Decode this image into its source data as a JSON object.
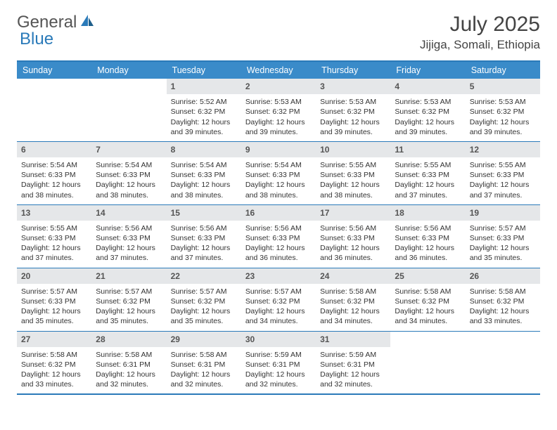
{
  "brand": {
    "part1": "General",
    "part2": "Blue",
    "logo_color": "#2a7ab9"
  },
  "title": "July 2025",
  "location": "Jijiga, Somali, Ethiopia",
  "colors": {
    "header_bg": "#3a8bc9",
    "header_text": "#ffffff",
    "rule": "#2a7ab9",
    "daynum_bg": "#e5e7e9",
    "text": "#333333"
  },
  "day_headers": [
    "Sunday",
    "Monday",
    "Tuesday",
    "Wednesday",
    "Thursday",
    "Friday",
    "Saturday"
  ],
  "weeks": [
    [
      {
        "empty": true
      },
      {
        "empty": true
      },
      {
        "n": "1",
        "sunrise": "5:52 AM",
        "sunset": "6:32 PM",
        "daylight": "12 hours and 39 minutes."
      },
      {
        "n": "2",
        "sunrise": "5:53 AM",
        "sunset": "6:32 PM",
        "daylight": "12 hours and 39 minutes."
      },
      {
        "n": "3",
        "sunrise": "5:53 AM",
        "sunset": "6:32 PM",
        "daylight": "12 hours and 39 minutes."
      },
      {
        "n": "4",
        "sunrise": "5:53 AM",
        "sunset": "6:32 PM",
        "daylight": "12 hours and 39 minutes."
      },
      {
        "n": "5",
        "sunrise": "5:53 AM",
        "sunset": "6:32 PM",
        "daylight": "12 hours and 39 minutes."
      }
    ],
    [
      {
        "n": "6",
        "sunrise": "5:54 AM",
        "sunset": "6:33 PM",
        "daylight": "12 hours and 38 minutes."
      },
      {
        "n": "7",
        "sunrise": "5:54 AM",
        "sunset": "6:33 PM",
        "daylight": "12 hours and 38 minutes."
      },
      {
        "n": "8",
        "sunrise": "5:54 AM",
        "sunset": "6:33 PM",
        "daylight": "12 hours and 38 minutes."
      },
      {
        "n": "9",
        "sunrise": "5:54 AM",
        "sunset": "6:33 PM",
        "daylight": "12 hours and 38 minutes."
      },
      {
        "n": "10",
        "sunrise": "5:55 AM",
        "sunset": "6:33 PM",
        "daylight": "12 hours and 38 minutes."
      },
      {
        "n": "11",
        "sunrise": "5:55 AM",
        "sunset": "6:33 PM",
        "daylight": "12 hours and 37 minutes."
      },
      {
        "n": "12",
        "sunrise": "5:55 AM",
        "sunset": "6:33 PM",
        "daylight": "12 hours and 37 minutes."
      }
    ],
    [
      {
        "n": "13",
        "sunrise": "5:55 AM",
        "sunset": "6:33 PM",
        "daylight": "12 hours and 37 minutes."
      },
      {
        "n": "14",
        "sunrise": "5:56 AM",
        "sunset": "6:33 PM",
        "daylight": "12 hours and 37 minutes."
      },
      {
        "n": "15",
        "sunrise": "5:56 AM",
        "sunset": "6:33 PM",
        "daylight": "12 hours and 37 minutes."
      },
      {
        "n": "16",
        "sunrise": "5:56 AM",
        "sunset": "6:33 PM",
        "daylight": "12 hours and 36 minutes."
      },
      {
        "n": "17",
        "sunrise": "5:56 AM",
        "sunset": "6:33 PM",
        "daylight": "12 hours and 36 minutes."
      },
      {
        "n": "18",
        "sunrise": "5:56 AM",
        "sunset": "6:33 PM",
        "daylight": "12 hours and 36 minutes."
      },
      {
        "n": "19",
        "sunrise": "5:57 AM",
        "sunset": "6:33 PM",
        "daylight": "12 hours and 35 minutes."
      }
    ],
    [
      {
        "n": "20",
        "sunrise": "5:57 AM",
        "sunset": "6:33 PM",
        "daylight": "12 hours and 35 minutes."
      },
      {
        "n": "21",
        "sunrise": "5:57 AM",
        "sunset": "6:32 PM",
        "daylight": "12 hours and 35 minutes."
      },
      {
        "n": "22",
        "sunrise": "5:57 AM",
        "sunset": "6:32 PM",
        "daylight": "12 hours and 35 minutes."
      },
      {
        "n": "23",
        "sunrise": "5:57 AM",
        "sunset": "6:32 PM",
        "daylight": "12 hours and 34 minutes."
      },
      {
        "n": "24",
        "sunrise": "5:58 AM",
        "sunset": "6:32 PM",
        "daylight": "12 hours and 34 minutes."
      },
      {
        "n": "25",
        "sunrise": "5:58 AM",
        "sunset": "6:32 PM",
        "daylight": "12 hours and 34 minutes."
      },
      {
        "n": "26",
        "sunrise": "5:58 AM",
        "sunset": "6:32 PM",
        "daylight": "12 hours and 33 minutes."
      }
    ],
    [
      {
        "n": "27",
        "sunrise": "5:58 AM",
        "sunset": "6:32 PM",
        "daylight": "12 hours and 33 minutes."
      },
      {
        "n": "28",
        "sunrise": "5:58 AM",
        "sunset": "6:31 PM",
        "daylight": "12 hours and 32 minutes."
      },
      {
        "n": "29",
        "sunrise": "5:58 AM",
        "sunset": "6:31 PM",
        "daylight": "12 hours and 32 minutes."
      },
      {
        "n": "30",
        "sunrise": "5:59 AM",
        "sunset": "6:31 PM",
        "daylight": "12 hours and 32 minutes."
      },
      {
        "n": "31",
        "sunrise": "5:59 AM",
        "sunset": "6:31 PM",
        "daylight": "12 hours and 32 minutes."
      },
      {
        "empty": true
      },
      {
        "empty": true
      }
    ]
  ],
  "labels": {
    "sunrise": "Sunrise:",
    "sunset": "Sunset:",
    "daylight": "Daylight:"
  }
}
